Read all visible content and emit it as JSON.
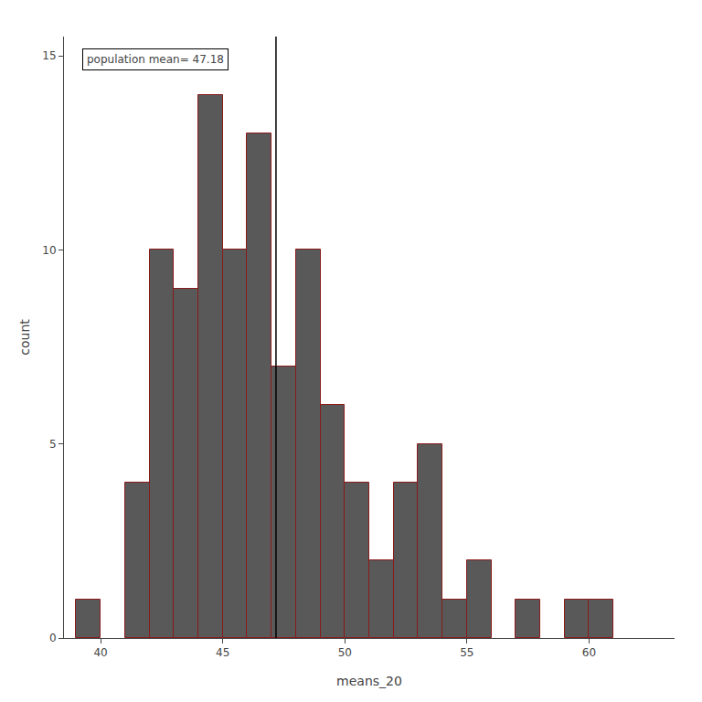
{
  "chart_data": {
    "type": "histogram",
    "xlabel": "means_20",
    "ylabel": "count",
    "bins": [
      39,
      40,
      41,
      42,
      43,
      44,
      45,
      46,
      47,
      48,
      49,
      50,
      51,
      52,
      53,
      54,
      55,
      56,
      57,
      58,
      59,
      60,
      61,
      62
    ],
    "counts": [
      1,
      0,
      4,
      10,
      9,
      14,
      10,
      13,
      7,
      10,
      6,
      4,
      2,
      4,
      5,
      1,
      2,
      0,
      1,
      0,
      1,
      1,
      0
    ],
    "color": "#595959",
    "edge_color": "#8b1a1a",
    "reference_line": {
      "x": 47.18,
      "color": "black"
    },
    "annotation": "population mean= 47.18",
    "xlim": [
      38.5,
      63.5
    ],
    "ylim": [
      0,
      15.5
    ],
    "xticks": [
      40,
      45,
      50,
      55,
      60
    ],
    "yticks": [
      0,
      5,
      10,
      15
    ],
    "grid": false
  }
}
